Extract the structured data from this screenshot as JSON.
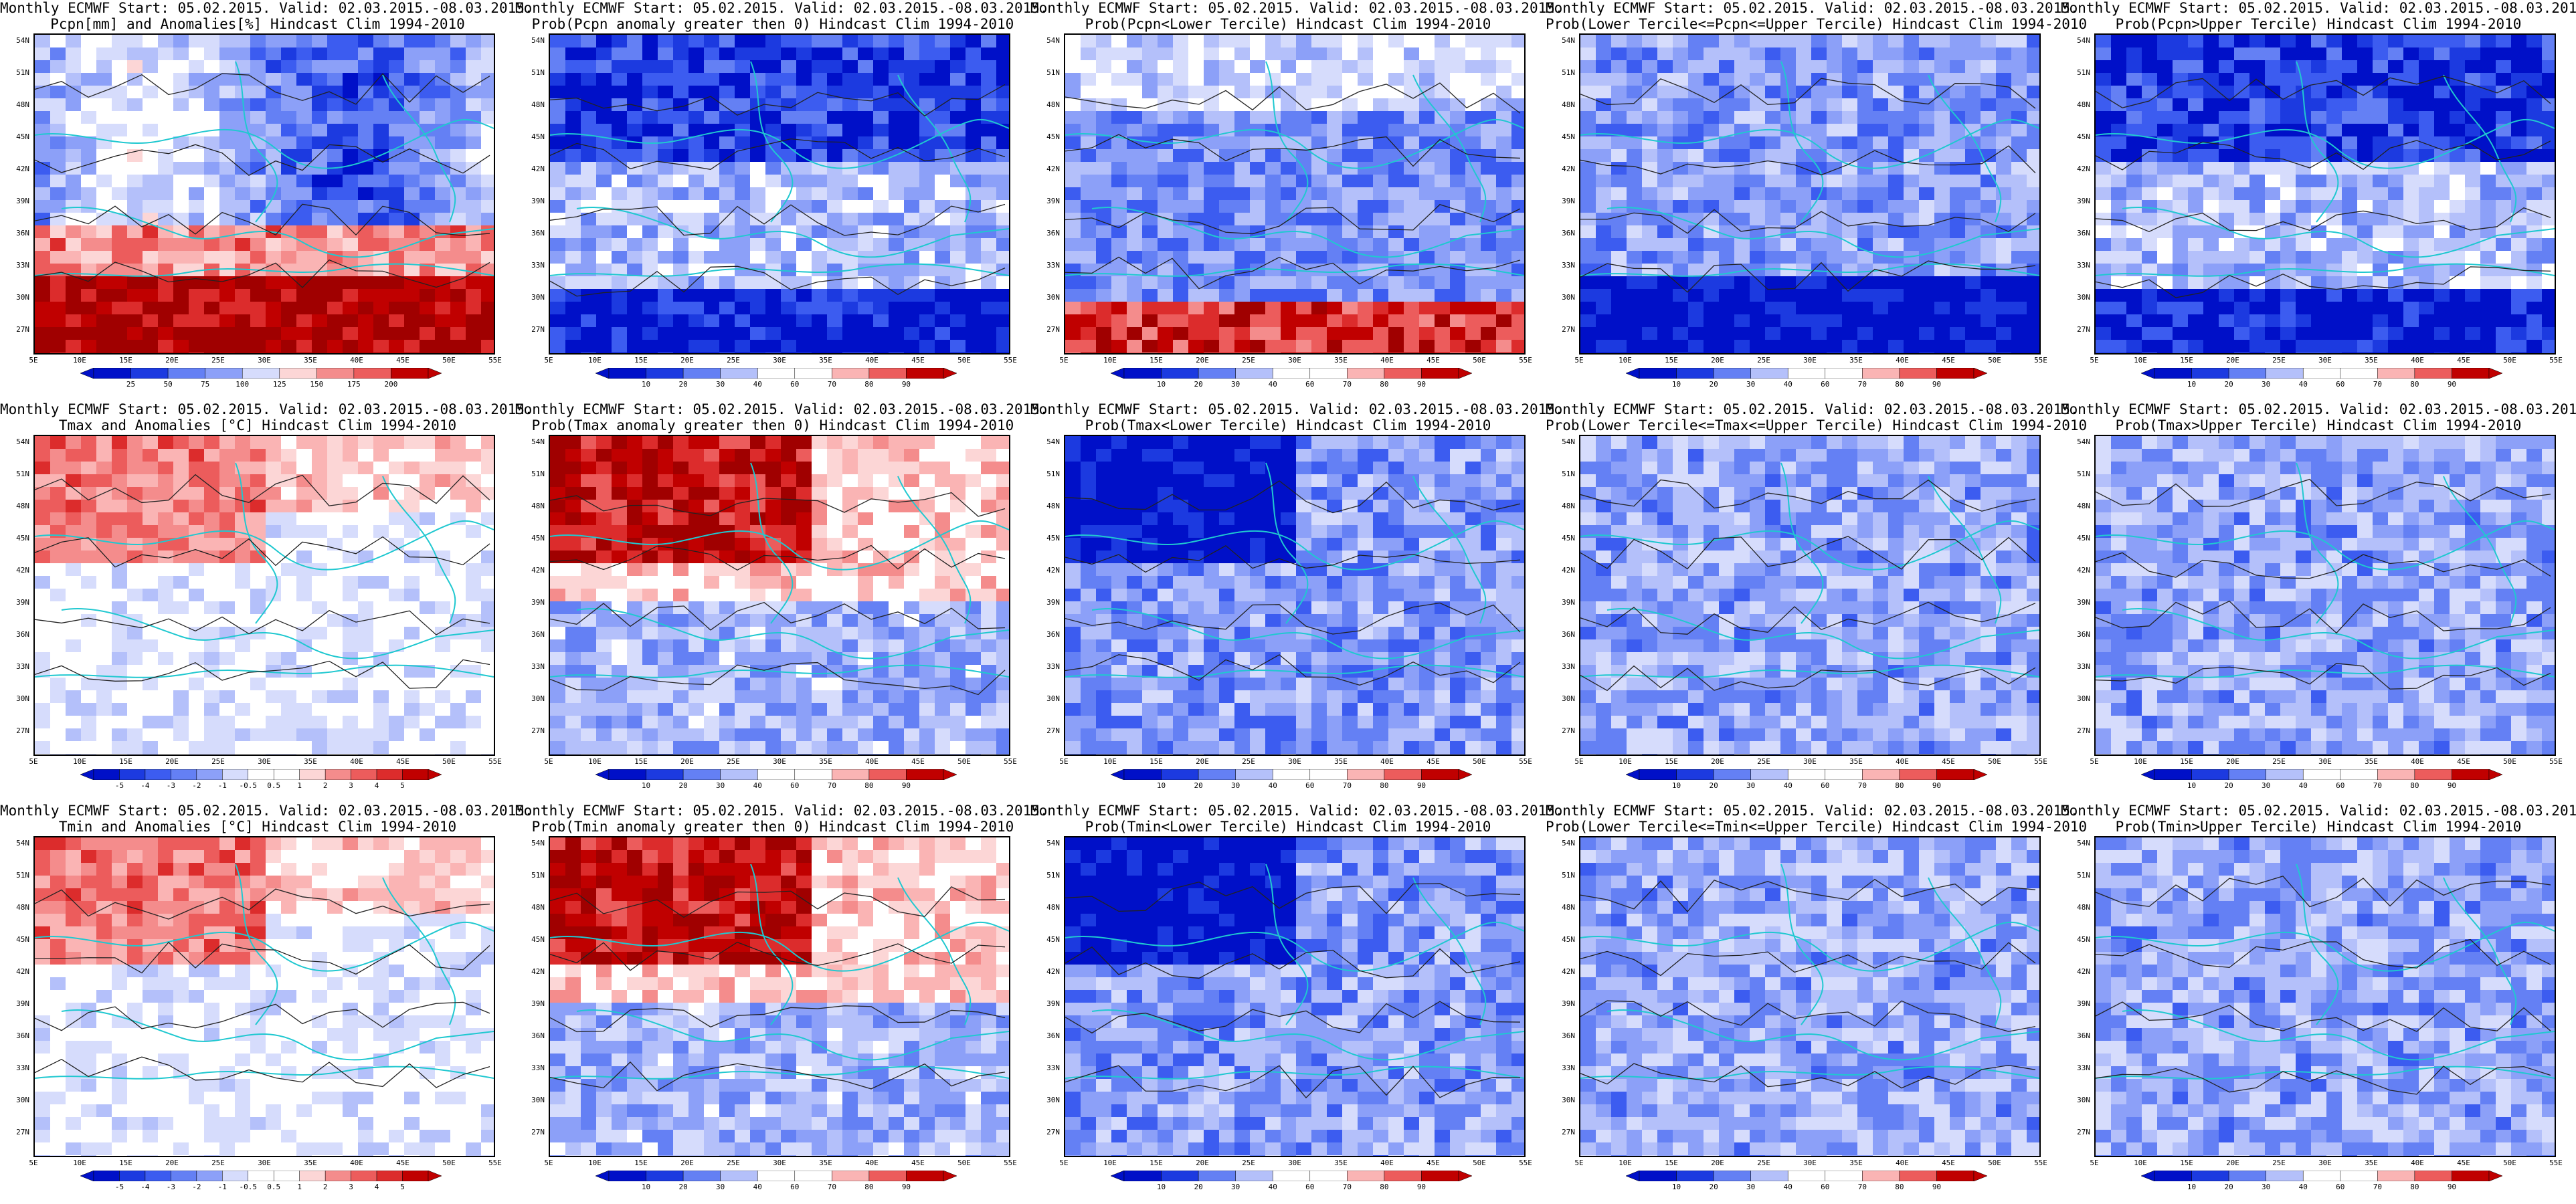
{
  "title_line1": "Monthly ECMWF Start: 05.02.2015. Valid: 02.03.2015.-08.03.2015.",
  "lat_labels": [
    "54N",
    "51N",
    "48N",
    "45N",
    "42N",
    "39N",
    "36N",
    "33N",
    "30N",
    "27N"
  ],
  "lon_labels": [
    "5E",
    "10E",
    "15E",
    "20E",
    "25E",
    "30E",
    "35E",
    "40E",
    "45E",
    "50E",
    "55E"
  ],
  "colorbars": {
    "precip": [
      "25",
      "50",
      "75",
      "100",
      "125",
      "150",
      "175",
      "200"
    ],
    "prob": [
      "10",
      "20",
      "30",
      "40",
      "60",
      "70",
      "80",
      "90"
    ],
    "anom": [
      "-5",
      "-4",
      "-3",
      "-2",
      "-1",
      "-0.5",
      "0.5",
      "1",
      "2",
      "3",
      "4",
      "5"
    ]
  },
  "panels": [
    {
      "line2": "Pcpn[mm] and Anomalies[%] Hindcast Clim 1994-2010",
      "cbar": "precip",
      "pattern": "pcpn_anom"
    },
    {
      "line2": "Prob(Pcpn anomaly greater then 0) Hindcast Clim 1994-2010",
      "cbar": "prob",
      "pattern": "blue_north"
    },
    {
      "line2": "Prob(Pcpn<Lower Tercile) Hindcast Clim 1994-2010",
      "cbar": "prob",
      "pattern": "red_south"
    },
    {
      "line2": "Prob(Lower Tercile<=Pcpn<=Upper Tercile) Hindcast Clim 1994-2010",
      "cbar": "prob",
      "pattern": "blue_south"
    },
    {
      "line2": "Prob(Pcpn>Upper Tercile) Hindcast Clim 1994-2010",
      "cbar": "prob",
      "pattern": "blue_north"
    },
    {
      "line2": "Tmax and Anomalies [°C] Hindcast Clim 1994-2010",
      "cbar": "anom",
      "pattern": "red_northwest_light"
    },
    {
      "line2": "Prob(Tmax anomaly greater then 0) Hindcast Clim 1994-2010",
      "cbar": "prob",
      "pattern": "red_northwest"
    },
    {
      "line2": "Prob(Tmax<Lower Tercile) Hindcast Clim 1994-2010",
      "cbar": "prob",
      "pattern": "blue_northwest"
    },
    {
      "line2": "Prob(Lower Tercile<=Tmax<=Upper Tercile) Hindcast Clim 1994-2010",
      "cbar": "prob",
      "pattern": "blue_mixed"
    },
    {
      "line2": "Prob(Tmax>Upper Tercile) Hindcast Clim 1994-2010",
      "cbar": "prob",
      "pattern": "blue_mixed"
    },
    {
      "line2": "Tmin and Anomalies [°C] Hindcast Clim 1994-2010",
      "cbar": "anom",
      "pattern": "red_northwest_light"
    },
    {
      "line2": "Prob(Tmin anomaly greater then 0) Hindcast Clim 1994-2010",
      "cbar": "prob",
      "pattern": "red_northwest"
    },
    {
      "line2": "Prob(Tmin<Lower Tercile) Hindcast Clim 1994-2010",
      "cbar": "prob",
      "pattern": "blue_northwest"
    },
    {
      "line2": "Prob(Lower Tercile<=Tmin<=Upper Tercile) Hindcast Clim 1994-2010",
      "cbar": "prob",
      "pattern": "blue_mixed"
    },
    {
      "line2": "Prob(Tmin>Upper Tercile) Hindcast Clim 1994-2010",
      "cbar": "prob",
      "pattern": "blue_mixed"
    }
  ]
}
